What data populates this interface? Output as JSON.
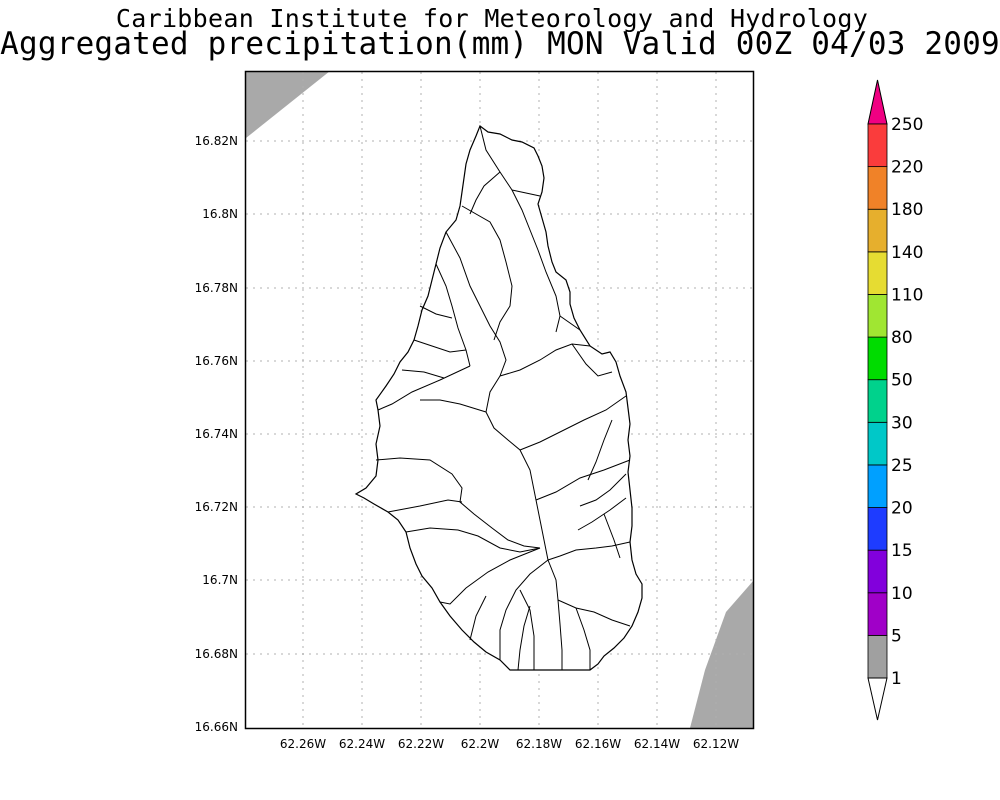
{
  "title": {
    "line1": "Caribbean Institute for Meteorology and Hydrology",
    "line2": "Aggregated precipitation(mm) MON Valid 00Z 04/03 2009"
  },
  "map": {
    "lat_ticks": [
      "16.82N",
      "16.8N",
      "16.78N",
      "16.76N",
      "16.74N",
      "16.72N",
      "16.7N",
      "16.68N",
      "16.66N"
    ],
    "lon_ticks": [
      "62.26W",
      "62.24W",
      "62.22W",
      "62.2W",
      "62.18W",
      "62.16W",
      "62.14W",
      "62.12W"
    ],
    "grid": true,
    "land_color": "#ffffff",
    "sea_mask_color": "#a9a9a9",
    "outline_color": "#000000"
  },
  "colorbar": {
    "levels": [
      "1",
      "5",
      "10",
      "15",
      "20",
      "25",
      "30",
      "50",
      "80",
      "110",
      "140",
      "180",
      "220",
      "250"
    ],
    "colors": [
      "#a0a0a0",
      "#a000c8",
      "#8200dc",
      "#1e3cff",
      "#00a0ff",
      "#00c8c8",
      "#00d28c",
      "#00dc00",
      "#a0e632",
      "#e6dc32",
      "#e6af2d",
      "#f08228",
      "#fa3c3c",
      "#f00082"
    ],
    "under_color": "#ffffff",
    "over_color": "#f00082"
  }
}
